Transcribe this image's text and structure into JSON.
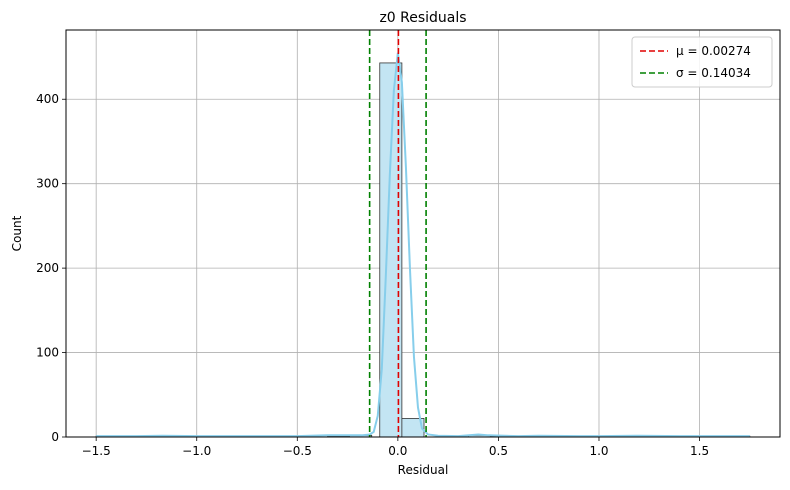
{
  "chart_data": {
    "type": "histogram",
    "title": "z0 Residuals",
    "xlabel": "Residual",
    "ylabel": "Count",
    "xlim": [
      -1.65,
      1.9
    ],
    "ylim": [
      0,
      482
    ],
    "xticks": [
      -1.5,
      -1.0,
      -0.5,
      0.0,
      0.5,
      1.0,
      1.5
    ],
    "xtick_labels": [
      "−1.5",
      "−1.0",
      "−0.5",
      "0.0",
      "0.5",
      "1.0",
      "1.5"
    ],
    "yticks": [
      0,
      100,
      200,
      300,
      400
    ],
    "ytick_labels": [
      "0",
      "100",
      "200",
      "300",
      "400"
    ],
    "grid": true,
    "legend_position": "top-right",
    "bars": [
      {
        "x0": -1.5,
        "x1": -1.39,
        "count": 1
      },
      {
        "x0": -1.17,
        "x1": -1.06,
        "count": 1
      },
      {
        "x0": -0.35,
        "x1": -0.24,
        "count": 1
      },
      {
        "x0": -0.24,
        "x1": -0.13,
        "count": 2
      },
      {
        "x0": -0.09,
        "x1": 0.02,
        "count": 443
      },
      {
        "x0": 0.02,
        "x1": 0.13,
        "count": 22
      },
      {
        "x0": 0.35,
        "x1": 0.46,
        "count": 2
      },
      {
        "x0": 0.46,
        "x1": 0.57,
        "count": 1
      },
      {
        "x0": 1.17,
        "x1": 1.28,
        "count": 1
      },
      {
        "x0": 1.64,
        "x1": 1.75,
        "count": 1
      }
    ],
    "kde": [
      [
        -1.5,
        1
      ],
      [
        -1.3,
        1
      ],
      [
        -1.17,
        1.5
      ],
      [
        -1.0,
        1
      ],
      [
        -0.7,
        1
      ],
      [
        -0.5,
        1
      ],
      [
        -0.35,
        2
      ],
      [
        -0.25,
        2
      ],
      [
        -0.18,
        2
      ],
      [
        -0.14,
        3
      ],
      [
        -0.12,
        6
      ],
      [
        -0.1,
        25
      ],
      [
        -0.08,
        80
      ],
      [
        -0.06,
        190
      ],
      [
        -0.04,
        310
      ],
      [
        -0.02,
        410
      ],
      [
        0.0,
        455
      ],
      [
        0.02,
        420
      ],
      [
        0.04,
        320
      ],
      [
        0.06,
        200
      ],
      [
        0.08,
        95
      ],
      [
        0.1,
        35
      ],
      [
        0.12,
        10
      ],
      [
        0.15,
        3
      ],
      [
        0.2,
        1.5
      ],
      [
        0.3,
        1
      ],
      [
        0.4,
        3
      ],
      [
        0.45,
        2
      ],
      [
        0.6,
        1
      ],
      [
        0.7,
        1.5
      ],
      [
        0.9,
        1
      ],
      [
        1.0,
        1
      ],
      [
        1.2,
        1.5
      ],
      [
        1.4,
        1
      ],
      [
        1.75,
        1
      ]
    ],
    "vlines": [
      {
        "x": 0.00274,
        "color": "#e00000",
        "label": "μ = 0.00274"
      },
      {
        "x": -0.14034,
        "color": "#008000",
        "label": "σ = 0.14034"
      },
      {
        "x": 0.14034,
        "color": "#008000",
        "label": ""
      }
    ],
    "legend": [
      {
        "label": "μ = 0.00274",
        "color": "#e00000"
      },
      {
        "label": "σ = 0.14034",
        "color": "#008000"
      }
    ],
    "colors": {
      "bar_fill": "#c3e5f3",
      "bar_edge": "#333333",
      "kde": "#87ceeb",
      "grid": "#b0b0b0"
    }
  }
}
